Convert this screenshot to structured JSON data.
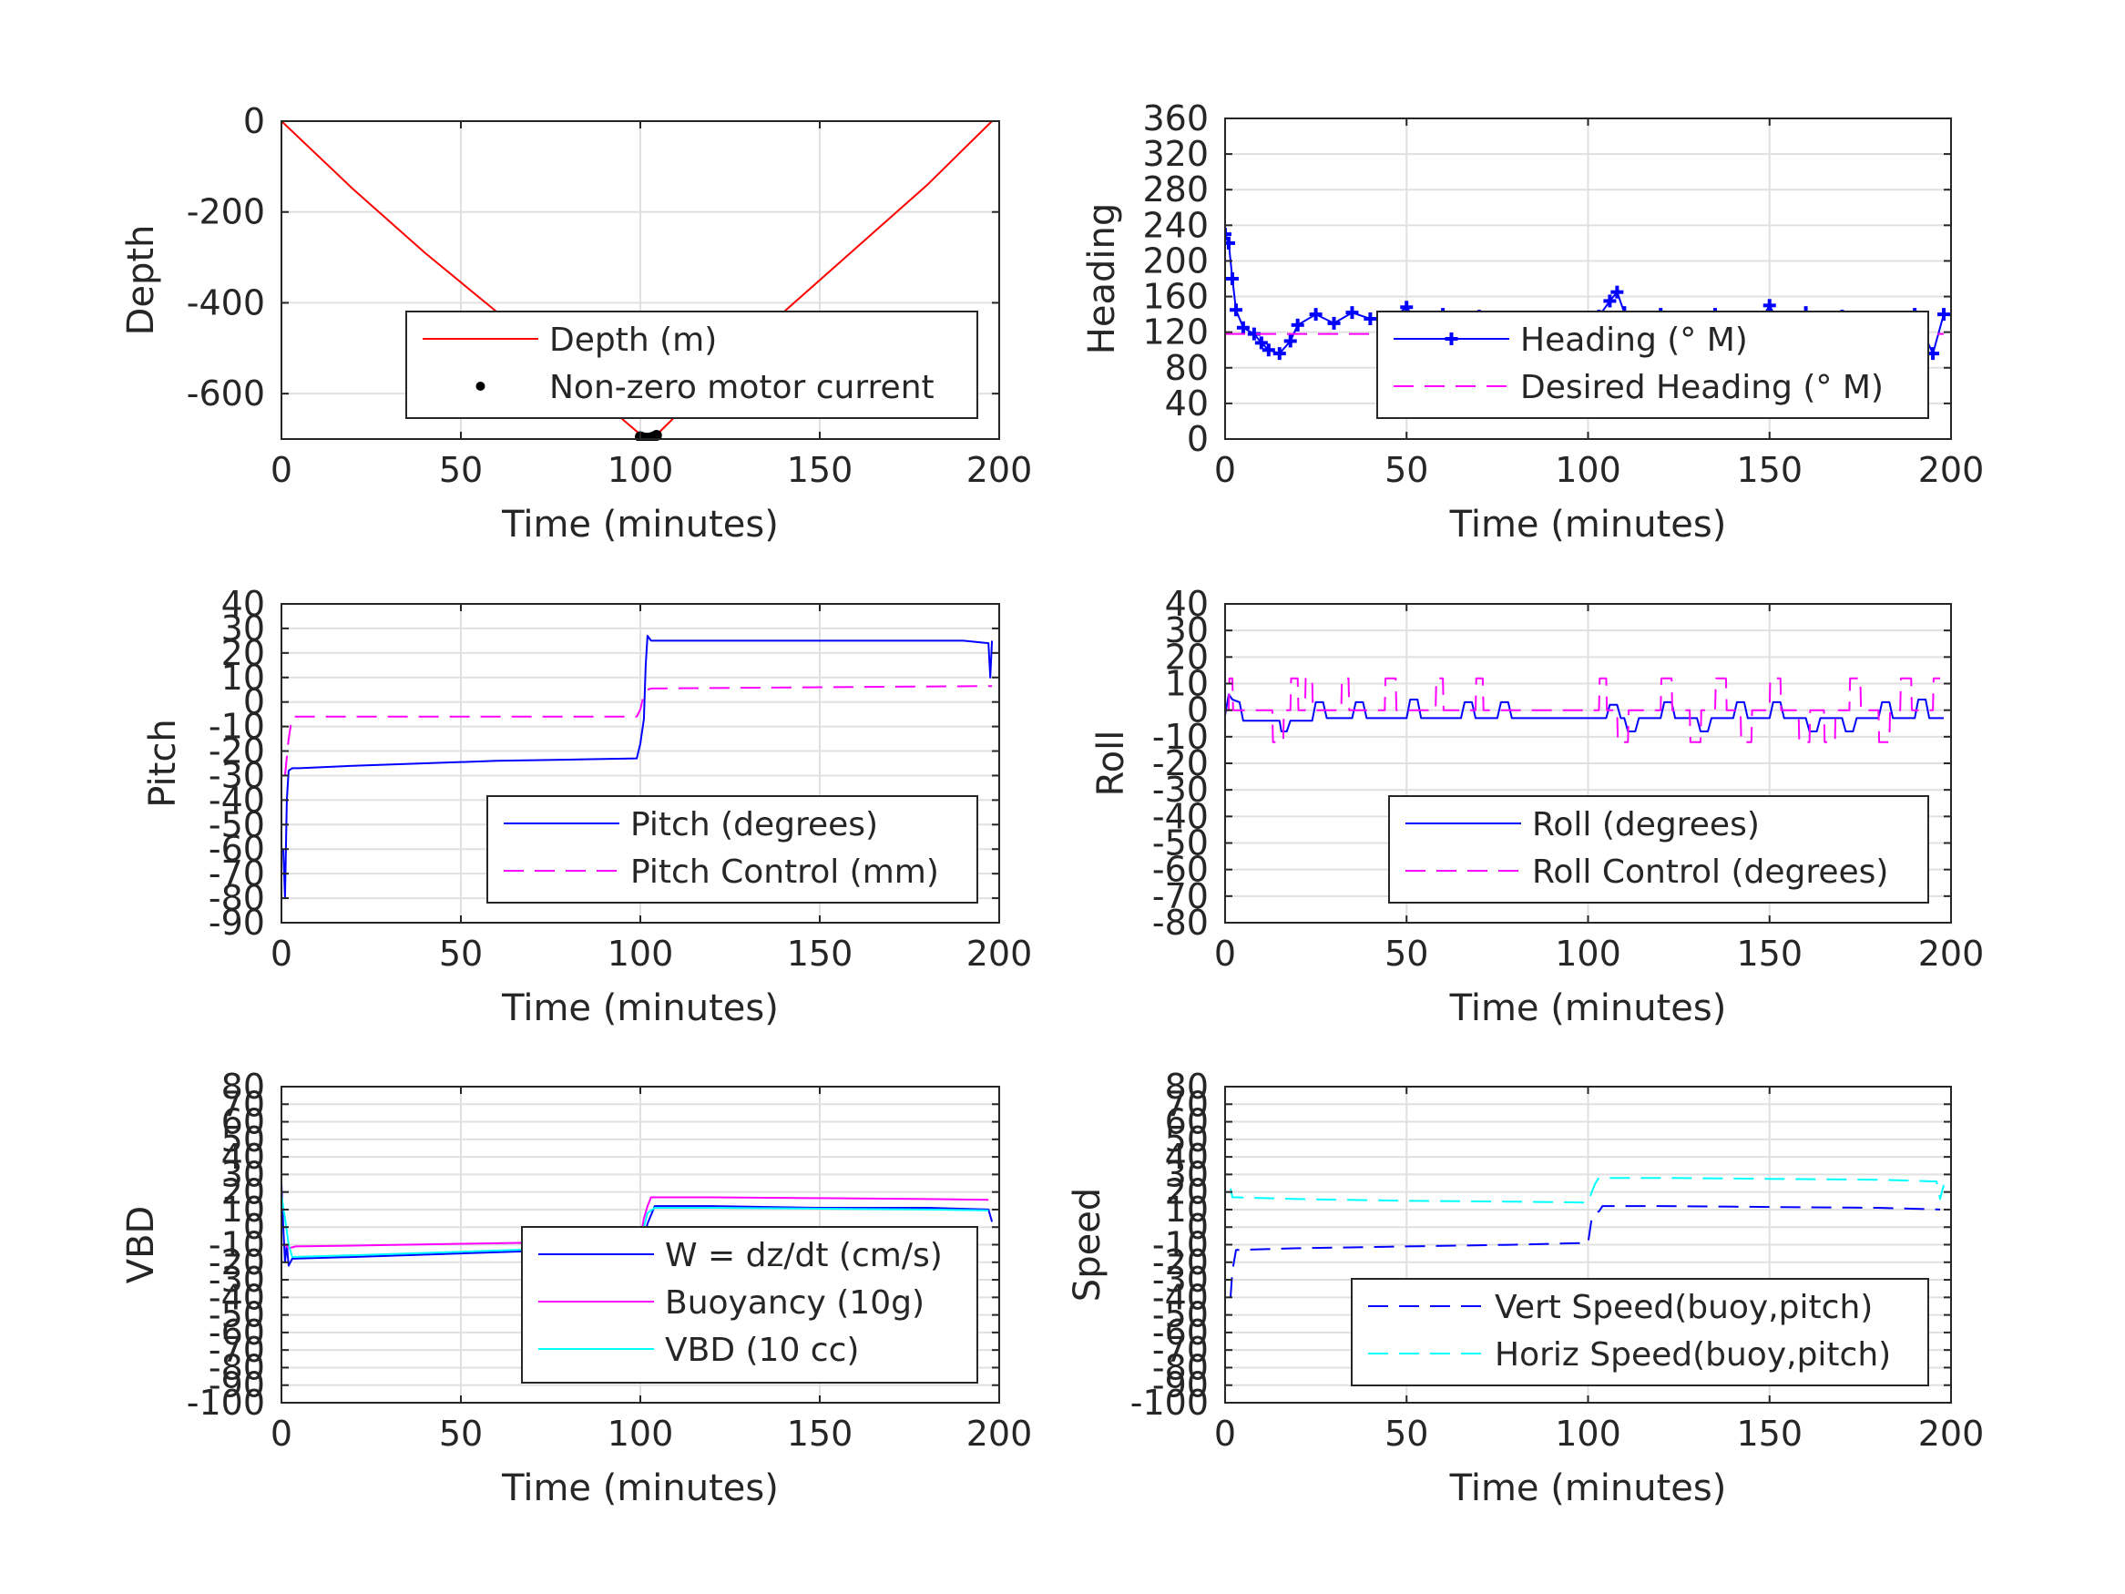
{
  "figure": {
    "background": "#ffffff",
    "grid_color": "#e0e0e0",
    "axis_color": "#262626"
  },
  "chart_data": [
    {
      "id": "depth",
      "type": "line",
      "title": "",
      "xlabel": "Time (minutes)",
      "ylabel": "Depth",
      "xlim": [
        0,
        200
      ],
      "ylim": [
        -700,
        0
      ],
      "xticks": [
        0,
        50,
        100,
        150,
        200
      ],
      "yticks": [
        -600,
        -400,
        -200,
        0
      ],
      "grid": true,
      "legend_location": "bottom-right",
      "series": [
        {
          "name": "Depth (m)",
          "color": "#ff0000",
          "style": "solid",
          "marker": "none",
          "x": [
            0,
            20,
            40,
            60,
            80,
            100,
            101,
            102,
            104,
            120,
            140,
            160,
            180,
            198
          ],
          "y": [
            0,
            -150,
            -290,
            -420,
            -555,
            -690,
            -695,
            -698,
            -695,
            -570,
            -420,
            -280,
            -140,
            0
          ]
        },
        {
          "name": "Non-zero motor current",
          "color": "#000000",
          "style": "none",
          "marker": "dot",
          "x": [
            100,
            100.8,
            101.5,
            102.3,
            103,
            103.8,
            104.5
          ],
          "y": [
            -695,
            -697,
            -698,
            -698,
            -697,
            -695,
            -692
          ]
        }
      ]
    },
    {
      "id": "heading",
      "type": "line",
      "title": "",
      "xlabel": "Time (minutes)",
      "ylabel": "Heading",
      "xlim": [
        0,
        200
      ],
      "ylim": [
        0,
        360
      ],
      "xticks": [
        0,
        50,
        100,
        150,
        200
      ],
      "yticks": [
        0,
        40,
        80,
        120,
        160,
        200,
        240,
        280,
        320,
        360
      ],
      "grid": true,
      "legend_location": "bottom-right",
      "series": [
        {
          "name": "Heading (° M)",
          "color": "#0000ff",
          "style": "solid",
          "marker": "plus",
          "x": [
            0,
            1,
            2,
            3,
            5,
            8,
            10,
            12,
            15,
            18,
            20,
            25,
            30,
            35,
            40,
            45,
            50,
            55,
            60,
            65,
            70,
            75,
            80,
            85,
            90,
            95,
            100,
            103,
            106,
            108,
            110,
            113,
            116,
            120,
            125,
            130,
            135,
            140,
            145,
            150,
            155,
            160,
            165,
            170,
            175,
            180,
            185,
            190,
            195,
            198
          ],
          "y": [
            230,
            220,
            180,
            145,
            125,
            118,
            108,
            100,
            96,
            110,
            128,
            140,
            130,
            142,
            135,
            132,
            148,
            118,
            140,
            130,
            138,
            114,
            126,
            118,
            130,
            122,
            128,
            138,
            155,
            165,
            142,
            95,
            125,
            140,
            128,
            92,
            140,
            85,
            115,
            150,
            110,
            142,
            95,
            138,
            120,
            128,
            90,
            140,
            96,
            140
          ]
        },
        {
          "name": "Desired Heading (° M)",
          "color": "#ff00ff",
          "style": "dashed",
          "marker": "none",
          "x": [
            0,
            198
          ],
          "y": [
            118,
            118
          ]
        }
      ]
    },
    {
      "id": "pitch",
      "type": "line",
      "title": "",
      "xlabel": "Time (minutes)",
      "ylabel": "Pitch",
      "xlim": [
        0,
        200
      ],
      "ylim": [
        -90,
        40
      ],
      "xticks": [
        0,
        50,
        100,
        150,
        200
      ],
      "yticks": [
        -90,
        -80,
        -70,
        -60,
        -50,
        -40,
        -30,
        -20,
        -10,
        0,
        10,
        20,
        30,
        40
      ],
      "grid": true,
      "legend_location": "bottom-right",
      "series": [
        {
          "name": "Pitch (degrees)",
          "color": "#0000ff",
          "style": "solid",
          "marker": "none",
          "x": [
            0.5,
            1,
            1.5,
            2,
            3,
            5,
            20,
            40,
            60,
            80,
            99,
            100,
            101,
            101.5,
            102,
            103,
            120,
            140,
            160,
            180,
            190,
            197,
            197.5,
            198
          ],
          "y": [
            -60,
            -80,
            -40,
            -28,
            -27,
            -27,
            -26,
            -25,
            -24,
            -23.5,
            -23,
            -17,
            -7,
            15,
            27,
            25,
            25,
            25,
            25,
            25,
            25,
            24,
            10,
            25
          ]
        },
        {
          "name": "Pitch Control (mm)",
          "color": "#ff00ff",
          "style": "dashed",
          "marker": "none",
          "x": [
            1,
            2,
            3,
            50,
            99,
            100,
            101,
            102,
            103,
            150,
            198
          ],
          "y": [
            -30,
            -15,
            -6,
            -6,
            -6,
            -3,
            3,
            5,
            5.5,
            6,
            6.5
          ]
        }
      ]
    },
    {
      "id": "roll",
      "type": "line",
      "title": "",
      "xlabel": "Time (minutes)",
      "ylabel": "Roll",
      "xlim": [
        0,
        200
      ],
      "ylim": [
        -80,
        40
      ],
      "xticks": [
        0,
        50,
        100,
        150,
        200
      ],
      "yticks": [
        -80,
        -70,
        -60,
        -50,
        -40,
        -30,
        -20,
        -10,
        0,
        10,
        20,
        30,
        40
      ],
      "grid": true,
      "legend_location": "bottom-right",
      "series": [
        {
          "name": "Roll (degrees)",
          "color": "#0000ff",
          "style": "solid",
          "marker": "none",
          "x": [
            0,
            1,
            2,
            4,
            5,
            15,
            15.5,
            17,
            18,
            24,
            25,
            27,
            28,
            35,
            36,
            38,
            39,
            50,
            51,
            53,
            54,
            65,
            66,
            68,
            69,
            75,
            76,
            78,
            79,
            100,
            105,
            106,
            108,
            109,
            110,
            111,
            113,
            114,
            120,
            121,
            123,
            124,
            130,
            131,
            133,
            134,
            140,
            141,
            143,
            144,
            150,
            151,
            153,
            154,
            160,
            161,
            163,
            164,
            170,
            171,
            173,
            174,
            180,
            181,
            183,
            184,
            190,
            191,
            193,
            194,
            198
          ],
          "y": [
            -2,
            6,
            4,
            3,
            -4,
            -4,
            -8,
            -8,
            -4,
            -4,
            3,
            3,
            -3,
            -3,
            3,
            3,
            -3,
            -3,
            4,
            4,
            -3,
            -3,
            3,
            3,
            -3,
            -3,
            3,
            3,
            -3,
            -3,
            -3,
            2,
            2,
            -3,
            -3,
            -8,
            -8,
            -3,
            -3,
            3,
            3,
            -3,
            -3,
            -8,
            -8,
            -3,
            -3,
            3,
            3,
            -3,
            -3,
            3,
            3,
            -3,
            -3,
            -8,
            -8,
            -3,
            -3,
            -8,
            -8,
            -3,
            -3,
            3,
            3,
            -3,
            -3,
            4,
            4,
            -3,
            -3
          ]
        },
        {
          "name": "Roll Control (degrees)",
          "color": "#ff00ff",
          "style": "dashed",
          "marker": "none",
          "x": [
            0,
            1,
            1.2,
            2,
            2.2,
            13,
            13.2,
            16,
            16.2,
            18,
            18.2,
            20,
            20.2,
            22,
            22.2,
            24,
            24.2,
            32,
            32.2,
            34,
            34.2,
            44,
            44.2,
            47,
            47.2,
            58,
            58.2,
            60,
            60.2,
            69,
            69.2,
            71,
            71.2,
            100,
            103,
            103.2,
            105,
            105.2,
            108,
            108.2,
            111,
            111.2,
            120,
            120.2,
            123,
            123.2,
            128,
            128.2,
            131,
            131.2,
            135,
            135.2,
            138,
            138.2,
            142,
            142.2,
            145,
            145.2,
            150,
            150.2,
            153,
            153.2,
            158,
            158.2,
            161,
            161.2,
            165,
            165.2,
            168,
            168.2,
            172,
            172.2,
            175,
            175.2,
            180,
            180.2,
            183,
            183.2,
            186,
            186.2,
            189,
            189.2,
            195,
            195.2,
            197
          ],
          "y": [
            0,
            0,
            12,
            12,
            0,
            0,
            -12,
            -12,
            0,
            0,
            12,
            12,
            0,
            0,
            12,
            12,
            0,
            0,
            12,
            12,
            0,
            0,
            12,
            12,
            0,
            0,
            12,
            12,
            0,
            0,
            12,
            12,
            0,
            0,
            0,
            12,
            12,
            0,
            0,
            -12,
            -12,
            0,
            0,
            12,
            12,
            0,
            0,
            -12,
            -12,
            0,
            0,
            12,
            12,
            0,
            0,
            -12,
            -12,
            0,
            0,
            12,
            12,
            0,
            0,
            -12,
            -12,
            0,
            0,
            -12,
            -12,
            0,
            0,
            12,
            12,
            0,
            0,
            -12,
            -12,
            0,
            0,
            12,
            12,
            0,
            0,
            12,
            12
          ]
        }
      ]
    },
    {
      "id": "vbd",
      "type": "line",
      "title": "",
      "xlabel": "Time (minutes)",
      "ylabel": "VBD",
      "xlim": [
        0,
        200
      ],
      "ylim": [
        -100,
        80
      ],
      "xticks": [
        0,
        50,
        100,
        150,
        200
      ],
      "yticks": [
        -100,
        -90,
        -80,
        -70,
        -60,
        -50,
        -40,
        -30,
        -20,
        -10,
        0,
        10,
        20,
        30,
        40,
        50,
        60,
        70,
        80
      ],
      "grid": true,
      "legend_location": "bottom-right",
      "series": [
        {
          "name": "W = dz/dt (cm/s)",
          "color": "#0000ff",
          "style": "solid",
          "marker": "none",
          "x": [
            0,
            0.5,
            1,
            1.5,
            2,
            3,
            20,
            50,
            80,
            99,
            100,
            102,
            104,
            120,
            150,
            180,
            197,
            198
          ],
          "y": [
            25,
            0,
            -20,
            -10,
            -22,
            -18,
            -17,
            -15,
            -13,
            -12,
            -14,
            2,
            12,
            12,
            11,
            11,
            10,
            3
          ]
        },
        {
          "name": "Buoyancy (10g)",
          "color": "#ff00ff",
          "style": "solid",
          "marker": "none",
          "x": [
            1,
            2,
            4,
            20,
            50,
            80,
            99,
            100,
            101,
            102,
            103,
            120,
            150,
            180,
            197
          ],
          "y": [
            -10,
            -12,
            -11,
            -10.5,
            -9.5,
            -8.5,
            -8,
            -7,
            5,
            12,
            17,
            17,
            16.5,
            16,
            15.5
          ]
        },
        {
          "name": "VBD (10 cc)",
          "color": "#00ffff",
          "style": "solid",
          "marker": "none",
          "x": [
            0,
            1,
            2,
            3,
            20,
            50,
            80,
            99,
            100,
            101,
            102,
            104,
            120,
            150,
            180,
            197
          ],
          "y": [
            18,
            5,
            -10,
            -17,
            -16,
            -14,
            -12,
            -11,
            -10,
            0,
            8,
            11,
            11,
            10.5,
            10,
            9.5
          ]
        }
      ]
    },
    {
      "id": "speed",
      "type": "line",
      "title": "",
      "xlabel": "Time (minutes)",
      "ylabel": "Speed",
      "xlim": [
        0,
        200
      ],
      "ylim": [
        -100,
        80
      ],
      "xticks": [
        0,
        50,
        100,
        150,
        200
      ],
      "yticks": [
        -100,
        -90,
        -80,
        -70,
        -60,
        -50,
        -40,
        -30,
        -20,
        -10,
        0,
        10,
        20,
        30,
        40,
        50,
        60,
        70,
        80
      ],
      "grid": true,
      "legend_location": "bottom-right",
      "series": [
        {
          "name": "Vert Speed(buoy,pitch)",
          "color": "#0000ff",
          "style": "dashed",
          "marker": "none",
          "x": [
            1.5,
            2,
            3,
            20,
            50,
            80,
            99,
            100,
            101,
            102,
            103,
            104,
            120,
            150,
            180,
            197
          ],
          "y": [
            -40,
            -25,
            -13,
            -12,
            -11,
            -10,
            -9,
            -9,
            5,
            8,
            9,
            12,
            12,
            11.5,
            11,
            10
          ]
        },
        {
          "name": "Horiz Speed(buoy,pitch)",
          "color": "#00ffff",
          "style": "dashed",
          "marker": "none",
          "x": [
            1.5,
            2,
            3,
            20,
            50,
            80,
            99,
            100,
            101,
            102,
            103,
            104,
            120,
            150,
            180,
            196,
            197,
            198
          ],
          "y": [
            22,
            17,
            17,
            16,
            15,
            14.5,
            14,
            14,
            20,
            25,
            28,
            28,
            28,
            27.5,
            27,
            26,
            16,
            24
          ]
        }
      ]
    }
  ]
}
